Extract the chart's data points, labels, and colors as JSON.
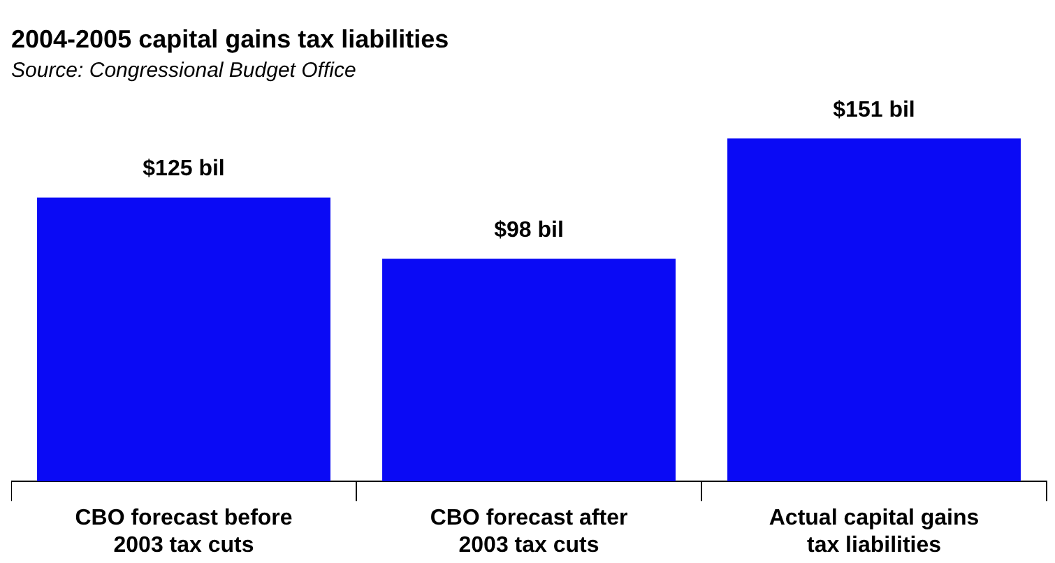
{
  "chart_data": {
    "type": "bar",
    "title": "2004-2005 capital gains tax liabilities",
    "subtitle": "Source: Congressional Budget Office",
    "categories": [
      "CBO forecast before 2003 tax cuts",
      "CBO forecast after 2003 tax cuts",
      "Actual capital gains tax liabilities"
    ],
    "values": [
      125,
      98,
      151
    ],
    "color": "#0a0af5",
    "value_labels": [
      "$125 bil",
      "$98 bil",
      "$151 bil"
    ]
  }
}
